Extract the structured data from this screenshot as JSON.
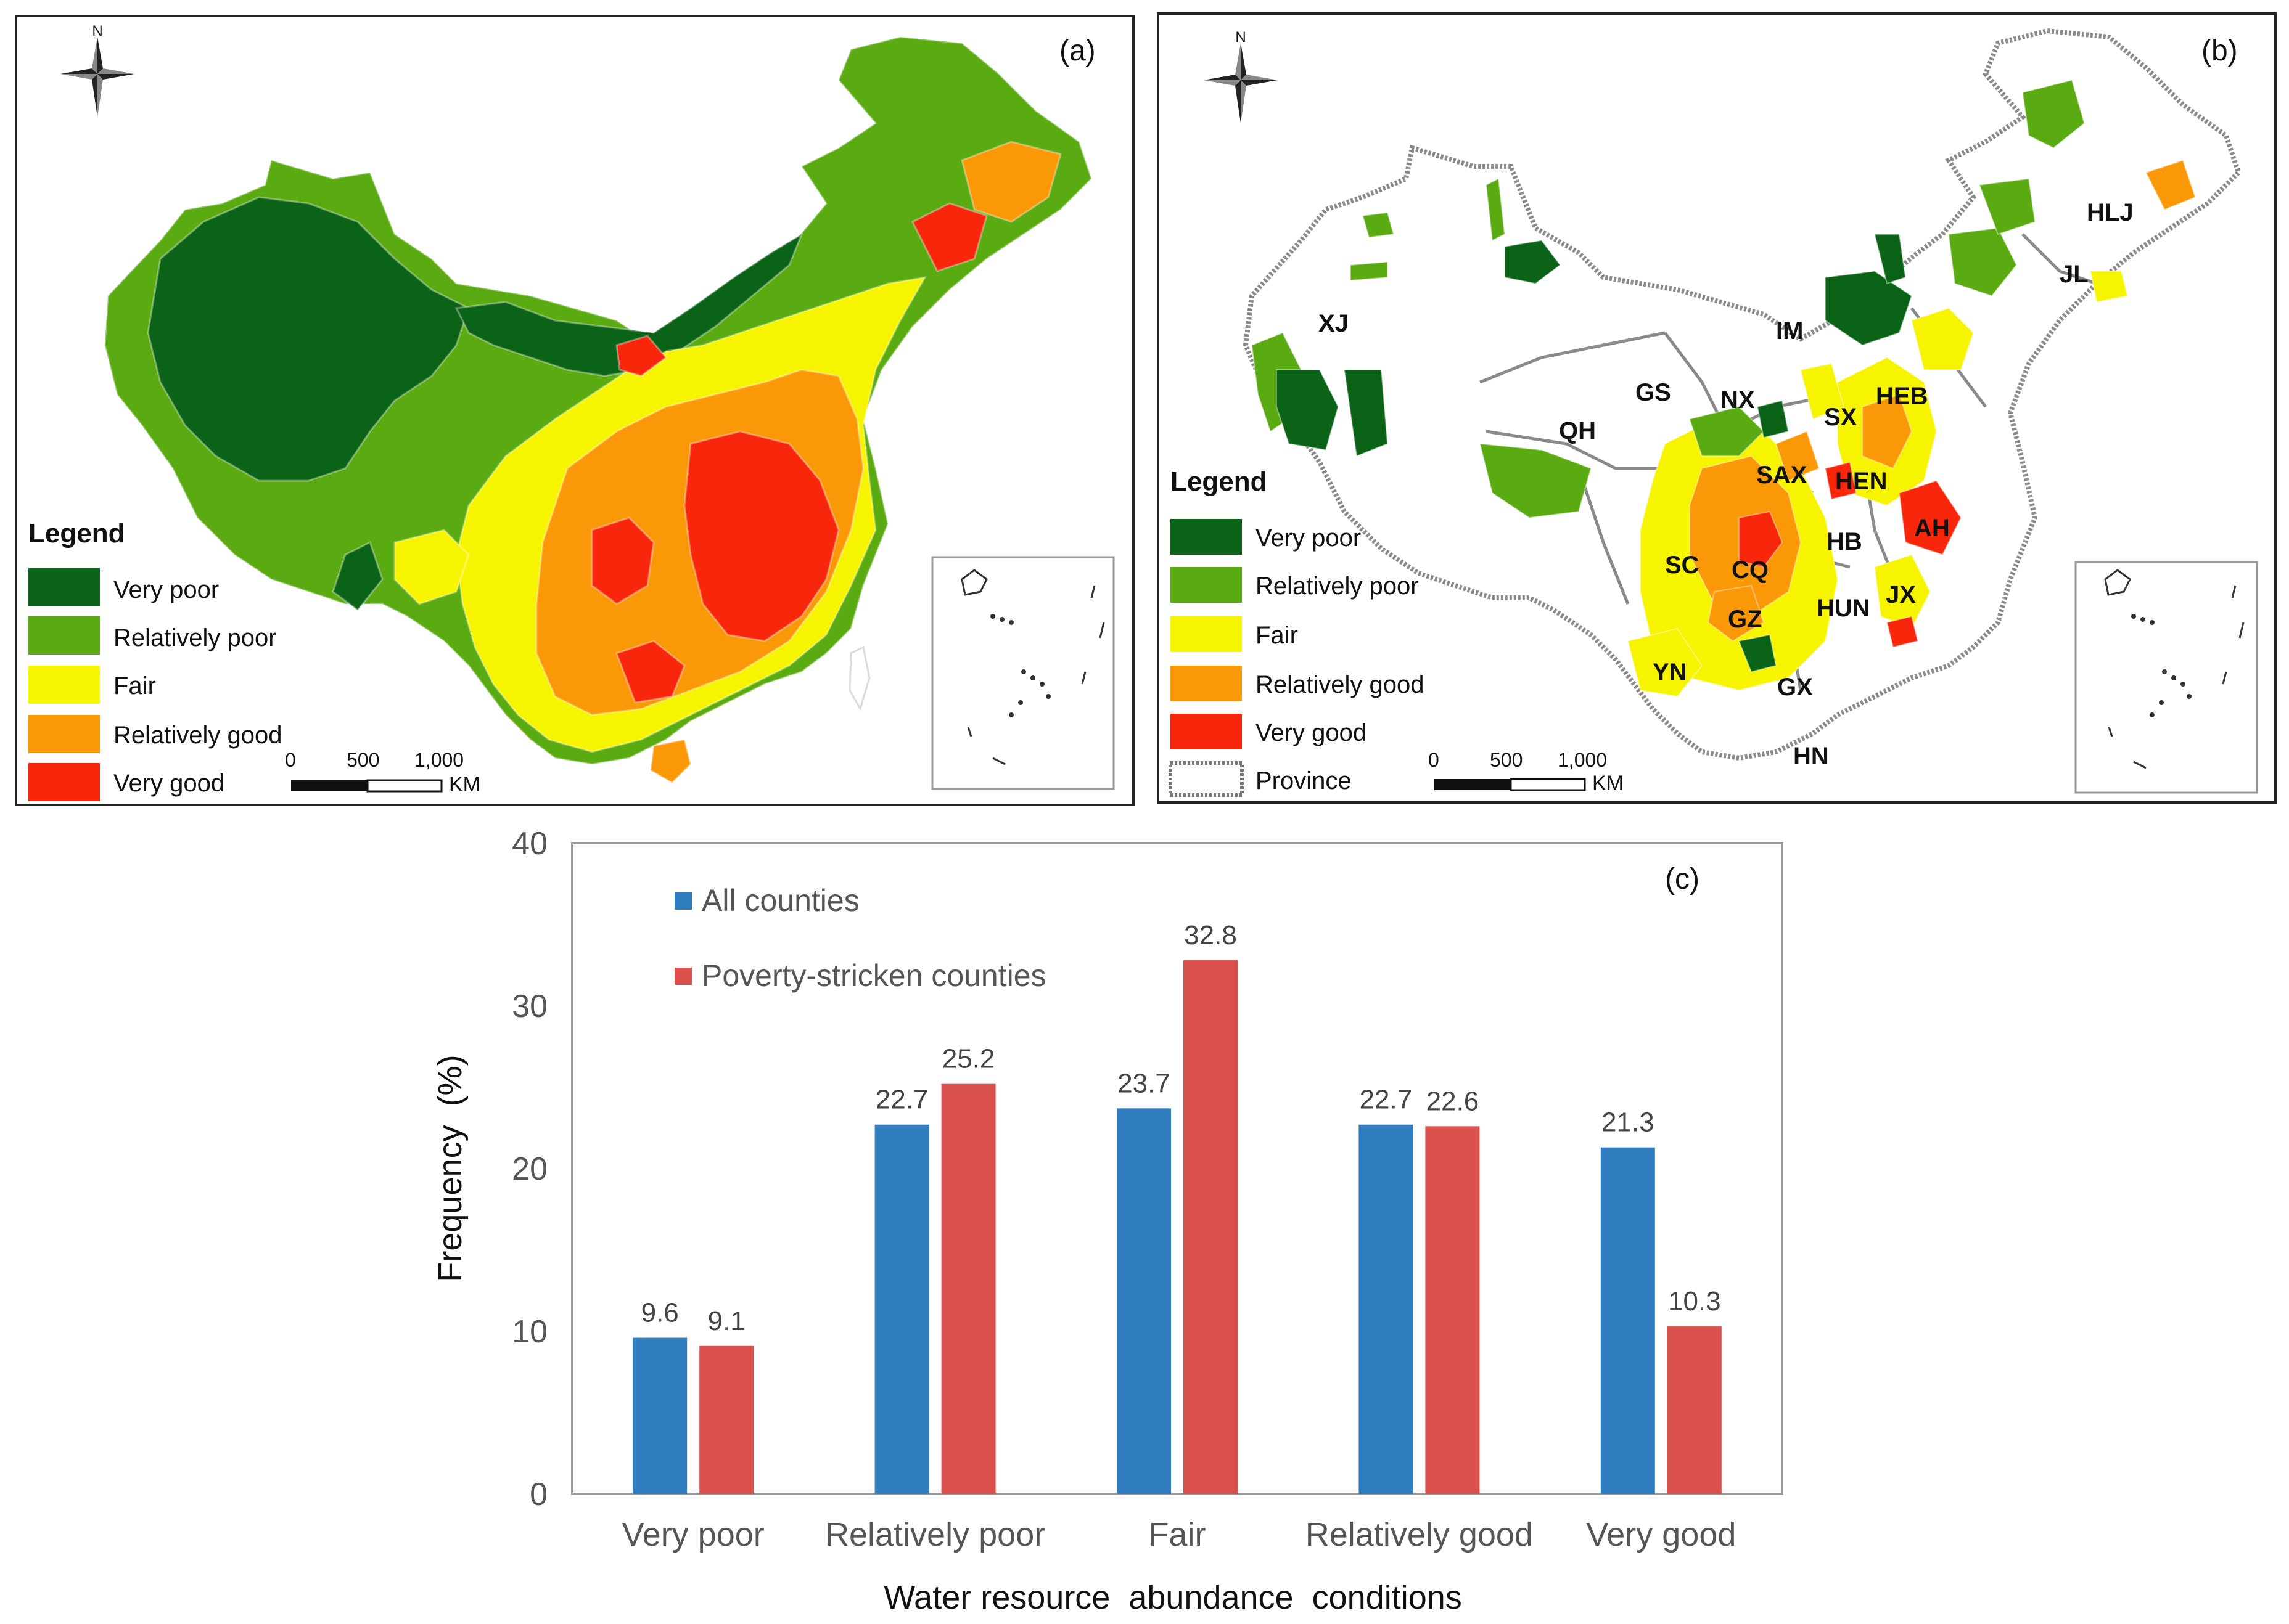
{
  "colors": {
    "very_poor": "#0b6318",
    "relatively_poor": "#5aab12",
    "fair": "#f7f400",
    "relatively_good": "#fb9807",
    "very_good": "#f8270c",
    "province": "#ffffff",
    "series_all": "#2f7cbf",
    "series_poverty": "#d9504d"
  },
  "icons": {
    "compass": "north-arrow-compass",
    "inset": "south-china-sea-inset-map"
  },
  "map_a": {
    "panel_label": "(a)",
    "north": "N",
    "legend_title": "Legend",
    "legend_items": [
      "Very poor",
      "Relatively poor",
      "Fair",
      "Relatively good",
      "Very good"
    ],
    "scale_ticks": [
      "0",
      "500",
      "1,000"
    ],
    "scale_unit": "KM"
  },
  "map_b": {
    "panel_label": "(b)",
    "north": "N",
    "legend_title": "Legend",
    "legend_items": [
      "Very poor",
      "Relatively poor",
      "Fair",
      "Relatively good",
      "Very good",
      "Province"
    ],
    "scale_ticks": [
      "0",
      "500",
      "1,000"
    ],
    "scale_unit": "KM",
    "province_labels": [
      "XJ",
      "IM",
      "HLJ",
      "JL",
      "GS",
      "NX",
      "QH",
      "SX",
      "HEB",
      "SAX",
      "HEN",
      "AH",
      "SC",
      "CQ",
      "HB",
      "GZ",
      "HUN",
      "JX",
      "YN",
      "GX",
      "HN"
    ]
  },
  "chart_data": {
    "type": "bar",
    "panel_label": "(c)",
    "title": "",
    "xlabel": "Water resource  abundance  conditions",
    "ylabel": "Frequency  (%)",
    "ylim": [
      0,
      40
    ],
    "yticks": [
      0,
      10,
      20,
      30,
      40
    ],
    "ytick_labels": [
      "0",
      "10",
      "20",
      "30",
      "40"
    ],
    "grid": false,
    "legend_position": "top-left",
    "categories": [
      "Very poor",
      "Relatively poor",
      "Fair",
      "Relatively good",
      "Very good"
    ],
    "series": [
      {
        "name": "All counties",
        "values": [
          9.6,
          22.7,
          23.7,
          22.7,
          21.3
        ],
        "labels": [
          "9.6",
          "22.7",
          "23.7",
          "22.7",
          "21.3"
        ]
      },
      {
        "name": "Poverty-stricken counties",
        "values": [
          9.1,
          25.2,
          32.8,
          22.6,
          10.3
        ],
        "labels": [
          "9.1",
          "25.2",
          "32.8",
          "22.6",
          "10.3"
        ]
      }
    ]
  }
}
